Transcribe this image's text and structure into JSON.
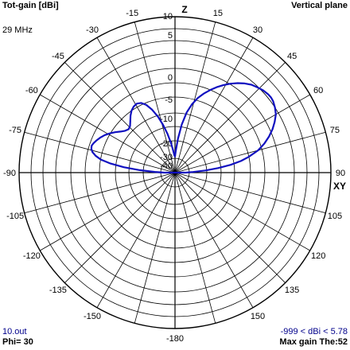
{
  "header": {
    "title": "Tot-gain [dBi]",
    "plane": "Vertical plane",
    "frequency": "29 MHz"
  },
  "footer": {
    "file": "10.out",
    "phi": "Phi= 30",
    "range": "-999 < dBi < 5.78",
    "max_gain": "Max gain The:52"
  },
  "colors": {
    "pattern": "#1010c0",
    "grid": "#000000",
    "background": "#ffffff"
  },
  "chart_data": {
    "type": "line",
    "polar": true,
    "title": "Tot-gain [dBi]",
    "axis_labels": {
      "top": "Z",
      "right": "XY"
    },
    "angle_ticks": [
      "-15",
      "15",
      "-30",
      "30",
      "-45",
      "45",
      "-60",
      "60",
      "-75",
      "75",
      "-90",
      "90",
      "-105",
      "105",
      "-120",
      "120",
      "-135",
      "135",
      "-150",
      "150",
      "-180"
    ],
    "radial_ticks": [
      "10",
      "5",
      "0",
      "-5",
      "-10",
      "-20",
      "-30",
      "-40"
    ],
    "radial_unit": "dBi",
    "max_gain_dbi": 5.78,
    "max_gain_theta_deg": 52,
    "series": [
      {
        "angle_deg": [
          -90,
          -88,
          -86,
          -84,
          -82,
          -80,
          -78,
          -76,
          -74,
          -72,
          -70,
          -68,
          -65,
          -62,
          -59,
          -56,
          -53,
          -50,
          -47,
          -44,
          -41,
          -38,
          -35,
          -32,
          -29,
          -26,
          -23,
          -20,
          -17,
          -14,
          -11,
          -8,
          -5,
          -2,
          0,
          2,
          5,
          8,
          11,
          14,
          17,
          20,
          23,
          26,
          29,
          32,
          35,
          38,
          41,
          44,
          47,
          50,
          52,
          54,
          57,
          60,
          63,
          66,
          69,
          72,
          75,
          78,
          80,
          82,
          84,
          86,
          88,
          90
        ],
        "gain_dbi": [
          -36.0,
          -25.0,
          -15.5,
          -9.0,
          -5.0,
          -2.5,
          -1.2,
          -0.4,
          0.0,
          0.1,
          -0.1,
          -0.4,
          -0.9,
          -1.5,
          -2.3,
          -3.2,
          -4.2,
          -5.0,
          -5.4,
          -5.1,
          -4.2,
          -3.2,
          -2.4,
          -1.9,
          -1.7,
          -2.0,
          -2.9,
          -4.5,
          -6.8,
          -9.8,
          -13.5,
          -18.0,
          -23.0,
          -28.0,
          -29.0,
          -24.0,
          -16.0,
          -10.0,
          -6.0,
          -3.6,
          -1.9,
          -0.6,
          0.5,
          1.5,
          2.4,
          3.2,
          3.9,
          4.5,
          5.0,
          5.3,
          5.6,
          5.75,
          5.78,
          5.7,
          5.4,
          5.0,
          4.3,
          3.5,
          2.5,
          1.3,
          -0.2,
          -2.5,
          -4.5,
          -7.5,
          -12.0,
          -18.0,
          -27.0,
          -36.0
        ]
      }
    ]
  }
}
